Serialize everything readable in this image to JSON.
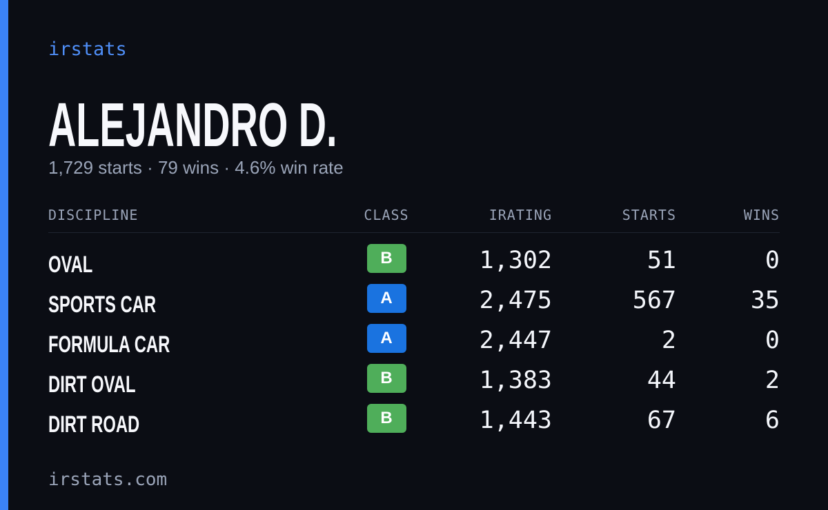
{
  "brand": "irstats",
  "name": "ALEJANDRO D.",
  "summary": "1,729 starts · 79 wins · 4.6% win rate",
  "class_colors": {
    "A": "#1a73e0",
    "B": "#4fae5a"
  },
  "table": {
    "headers": [
      "DISCIPLINE",
      "CLASS",
      "IRATING",
      "STARTS",
      "WINS"
    ],
    "rows": [
      [
        "OVAL",
        "B",
        "1,302",
        "51",
        "0"
      ],
      [
        "SPORTS CAR",
        "A",
        "2,475",
        "567",
        "35"
      ],
      [
        "FORMULA CAR",
        "A",
        "2,447",
        "2",
        "0"
      ],
      [
        "DIRT OVAL",
        "B",
        "1,383",
        "44",
        "2"
      ],
      [
        "DIRT ROAD",
        "B",
        "1,443",
        "67",
        "6"
      ]
    ]
  },
  "footer": "irstats.com"
}
